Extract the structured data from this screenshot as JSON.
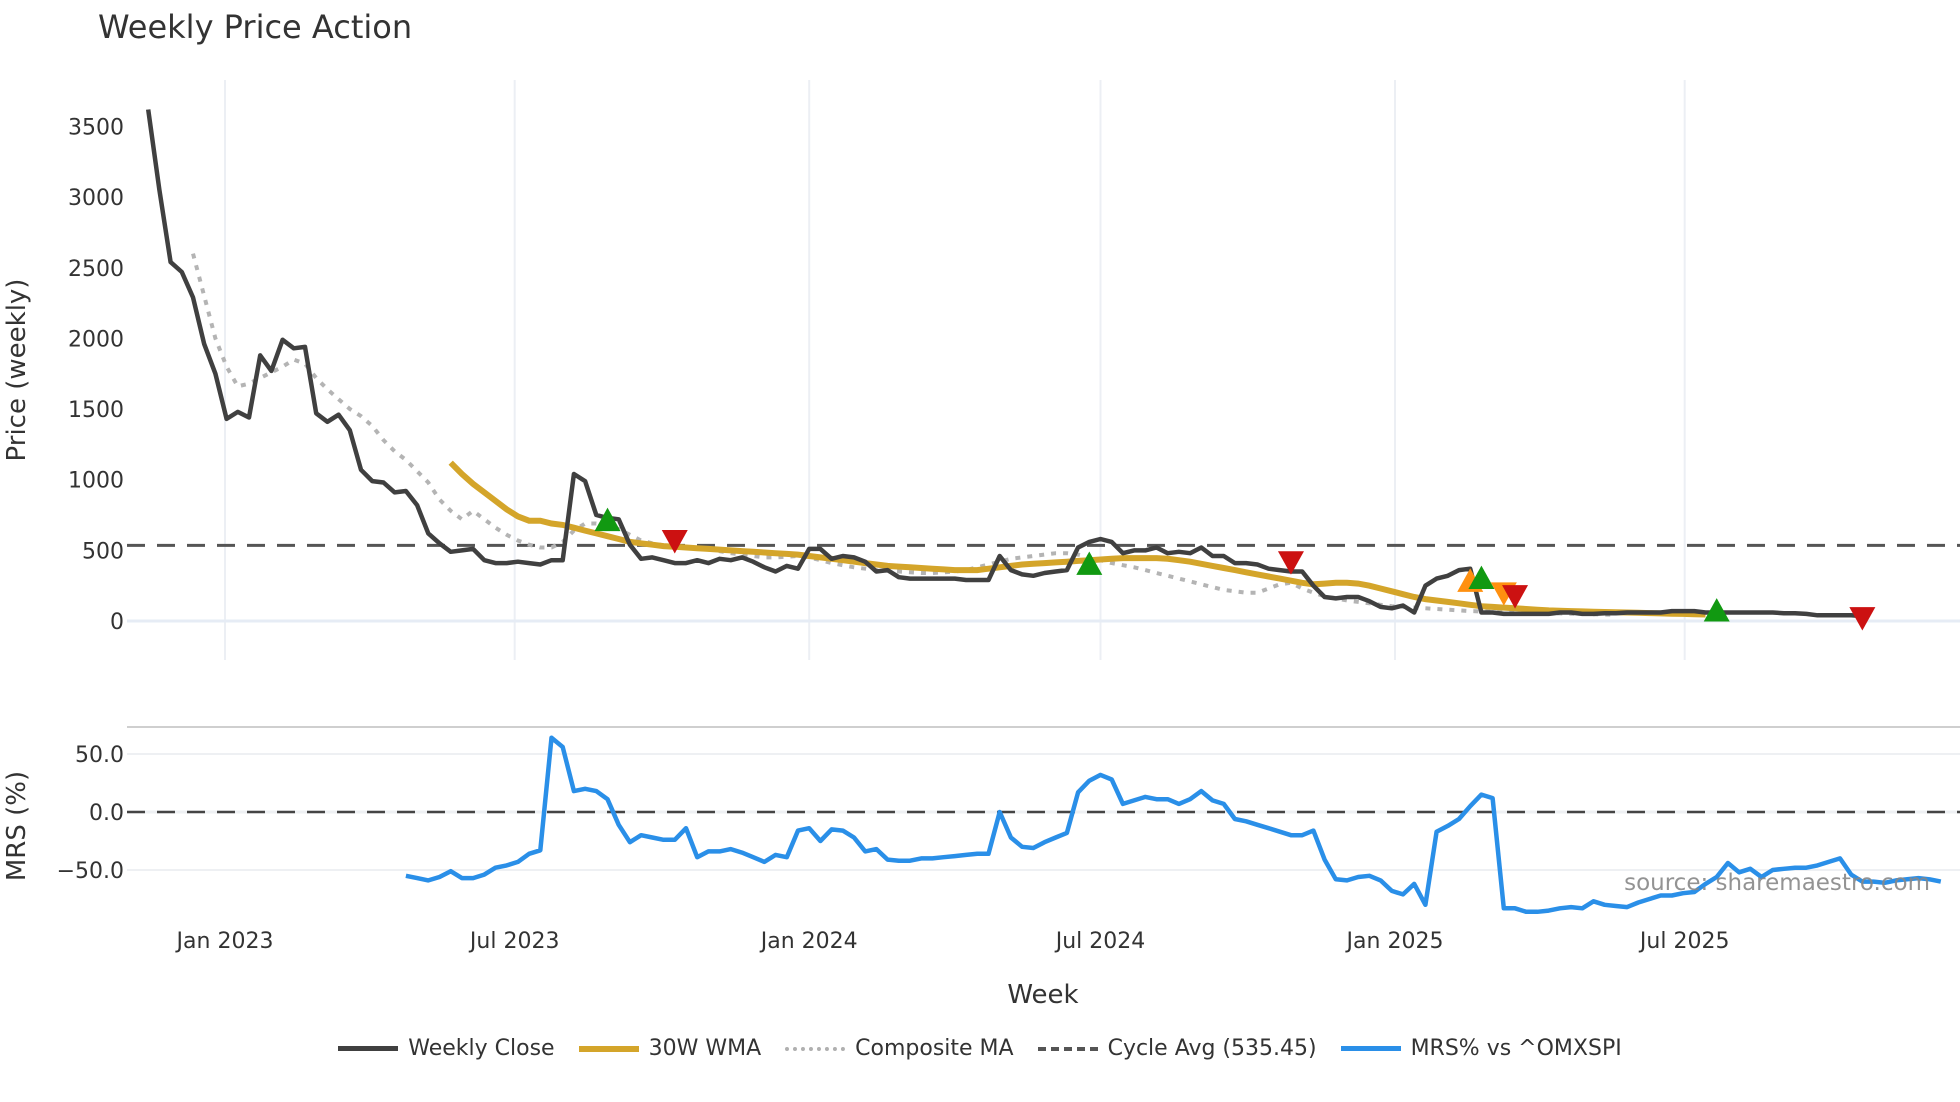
{
  "title": "Weekly Price Action",
  "source_note": "source: sharemaestro.com",
  "legend": [
    {
      "label": "Weekly Close",
      "color": "#404040",
      "style": "solid"
    },
    {
      "label": "30W WMA",
      "color": "#D4A52A",
      "style": "solid"
    },
    {
      "label": "Composite MA",
      "color": "#B0B0B0",
      "style": "dotted"
    },
    {
      "label": "Cycle Avg (535.45)",
      "color": "#555555",
      "style": "dashed"
    },
    {
      "label": "MRS% vs ^OMXSPI",
      "color": "#2A8FE8",
      "style": "solid"
    }
  ],
  "axes": {
    "price_ylabel": "Price (weekly)",
    "mrs_ylabel": "MRS (%)",
    "xlabel": "Week",
    "price_ticks": [
      "0",
      "500",
      "1000",
      "1500",
      "2000",
      "2500",
      "3000",
      "3500"
    ],
    "mrs_ticks": [
      "50.0",
      "0.0",
      "-50.0"
    ],
    "x_ticks": [
      "Jan 2023",
      "Jul 2023",
      "Jan 2024",
      "Jul 2024",
      "Jan 2025",
      "Jul 2025"
    ]
  },
  "chart_data": [
    {
      "type": "line",
      "title": "Weekly Price Action",
      "xlabel": "Week",
      "ylabel": "Price (weekly)",
      "ylim": [
        -250,
        3750
      ],
      "x_range": [
        "2022-11-14",
        "2025-11-03"
      ],
      "grid": true,
      "legend_position": "bottom",
      "reference_lines": [
        {
          "name": "Cycle Avg (535.45)",
          "y": 535.45,
          "style": "dashed"
        }
      ],
      "series": [
        {
          "name": "Weekly Close",
          "x_start": "2022-11-14",
          "freq": "weekly",
          "values": [
            3620,
            3050,
            2540,
            2470,
            2290,
            1960,
            1750,
            1430,
            1480,
            1440,
            1880,
            1770,
            1990,
            1930,
            1940,
            1470,
            1410,
            1460,
            1350,
            1070,
            990,
            980,
            910,
            920,
            820,
            620,
            550,
            490,
            500,
            510,
            430,
            410,
            410,
            420,
            410,
            400,
            430,
            430,
            1040,
            990,
            750,
            730,
            720,
            540,
            440,
            450,
            430,
            410,
            410,
            430,
            410,
            440,
            430,
            450,
            420,
            380,
            350,
            390,
            370,
            510,
            510,
            440,
            460,
            450,
            420,
            350,
            360,
            310,
            300,
            300,
            300,
            300,
            300,
            290,
            290,
            290,
            460,
            360,
            330,
            320,
            340,
            350,
            360,
            520,
            560,
            580,
            560,
            480,
            500,
            500,
            520,
            480,
            490,
            480,
            520,
            460,
            460,
            410,
            410,
            400,
            370,
            360,
            350,
            350,
            250,
            170,
            160,
            170,
            170,
            140,
            100,
            90,
            110,
            60,
            250,
            300,
            320,
            360,
            370,
            60,
            60,
            50,
            50,
            50,
            50,
            50,
            60,
            60,
            50,
            50,
            55,
            55,
            60,
            60,
            60,
            60,
            70,
            70,
            70,
            60,
            60,
            60,
            60,
            60,
            60,
            60,
            55,
            55,
            50,
            40,
            40,
            40,
            40,
            35
          ]
        },
        {
          "name": "30W WMA",
          "x_start": "2023-05-22",
          "freq": "weekly",
          "values": [
            1120,
            1040,
            970,
            910,
            850,
            790,
            740,
            710,
            710,
            690,
            680,
            660,
            640,
            620,
            600,
            580,
            560,
            550,
            540,
            530,
            525,
            520,
            515,
            510,
            505,
            500,
            495,
            490,
            485,
            480,
            475,
            470,
            460,
            450,
            440,
            430,
            420,
            410,
            400,
            390,
            385,
            380,
            375,
            370,
            365,
            360,
            360,
            360,
            370,
            380,
            390,
            400,
            405,
            410,
            415,
            420,
            425,
            430,
            435,
            440,
            445,
            445,
            445,
            445,
            440,
            430,
            420,
            405,
            390,
            375,
            360,
            345,
            330,
            315,
            300,
            285,
            270,
            260,
            265,
            270,
            270,
            265,
            250,
            230,
            210,
            190,
            170,
            155,
            145,
            135,
            125,
            115,
            105,
            100,
            95,
            90,
            85,
            80,
            75,
            72,
            70,
            68,
            66,
            64,
            62,
            60,
            58,
            56,
            54,
            52,
            50,
            48,
            46
          ]
        },
        {
          "name": "Composite MA",
          "x_start": "2022-12-12",
          "freq": "weekly",
          "values": [
            2600,
            2300,
            2000,
            1800,
            1660,
            1680,
            1720,
            1760,
            1800,
            1850,
            1820,
            1720,
            1640,
            1570,
            1500,
            1450,
            1380,
            1280,
            1200,
            1140,
            1060,
            980,
            860,
            780,
            720,
            780,
            720,
            660,
            610,
            570,
            540,
            520,
            520,
            560,
            640,
            690,
            690,
            680,
            650,
            610,
            570,
            550,
            535,
            530,
            520,
            515,
            505,
            495,
            480,
            470,
            460,
            450,
            450,
            455,
            460,
            450,
            430,
            410,
            395,
            380,
            370,
            360,
            355,
            350,
            345,
            340,
            340,
            345,
            350,
            360,
            380,
            400,
            420,
            440,
            450,
            460,
            470,
            480,
            480,
            470,
            450,
            430,
            410,
            395,
            380,
            360,
            340,
            320,
            300,
            280,
            260,
            240,
            220,
            210,
            200,
            200,
            230,
            260,
            270,
            230,
            200,
            175,
            160,
            145,
            135,
            125,
            115,
            105,
            100,
            95,
            90,
            85,
            80,
            75,
            70,
            68,
            66,
            64,
            62,
            60,
            58,
            56,
            54,
            52,
            50,
            48,
            46,
            44
          ]
        },
        {
          "name": "Cycle Avg (535.45)",
          "constant": 535.45
        }
      ],
      "signals": [
        {
          "type": "buy",
          "color": "#119911",
          "date": "2023-08-28",
          "price": 710
        },
        {
          "type": "sell",
          "color": "#CC1111",
          "date": "2023-10-09",
          "price": 570
        },
        {
          "type": "buy",
          "color": "#119911",
          "date": "2024-06-24",
          "price": 400
        },
        {
          "type": "sell",
          "color": "#CC1111",
          "date": "2024-10-28",
          "price": 420
        },
        {
          "type": "caution-up",
          "color": "#FF9010",
          "date": "2025-02-17",
          "price": 280
        },
        {
          "type": "buy",
          "color": "#119911",
          "date": "2025-02-24",
          "price": 300
        },
        {
          "type": "caution-down",
          "color": "#FF9010",
          "date": "2025-03-10",
          "price": 200
        },
        {
          "type": "sell",
          "color": "#CC1111",
          "date": "2025-03-17",
          "price": 180
        },
        {
          "type": "buy",
          "color": "#119911",
          "date": "2025-07-21",
          "price": 70
        },
        {
          "type": "sell",
          "color": "#CC1111",
          "date": "2025-10-20",
          "price": 25
        }
      ]
    },
    {
      "type": "line",
      "title": "",
      "xlabel": "Week",
      "ylabel": "MRS (%)",
      "ylim": [
        -95,
        80
      ],
      "reference_lines": [
        {
          "y": 0,
          "style": "dashed"
        }
      ],
      "series": [
        {
          "name": "MRS% vs ^OMXSPI",
          "x_start": "2023-04-24",
          "freq": "weekly",
          "values": [
            -55,
            -57,
            -59,
            -56,
            -51,
            -57,
            -57,
            -54,
            -48,
            -46,
            -43,
            -36,
            -33,
            64,
            56,
            18,
            20,
            18,
            11,
            -11,
            -26,
            -20,
            -22,
            -24,
            -24,
            -14,
            -39,
            -34,
            -34,
            -32,
            -35,
            -39,
            -43,
            -37,
            -39,
            -16,
            -14,
            -25,
            -15,
            -16,
            -22,
            -34,
            -32,
            -41,
            -42,
            -42,
            -40,
            -40,
            -39,
            -38,
            -37,
            -36,
            -36,
            0,
            -22,
            -30,
            -31,
            -26,
            -22,
            -18,
            17,
            27,
            32,
            28,
            7,
            10,
            13,
            11,
            11,
            7,
            11,
            18,
            10,
            7,
            -6,
            -8,
            -11,
            -14,
            -17,
            -20,
            -20,
            -16,
            -41,
            -58,
            -59,
            -56,
            -55,
            -59,
            -68,
            -71,
            -62,
            -80,
            -17,
            -12,
            -6,
            5,
            15,
            12,
            -83,
            -83,
            -86,
            -86,
            -85,
            -83,
            -82,
            -83,
            -77,
            -80,
            -81,
            -82,
            -78,
            -75,
            -72,
            -72,
            -70,
            -69,
            -62,
            -56,
            -44,
            -52,
            -49,
            -56,
            -50,
            -49,
            -48,
            -48,
            -46,
            -43,
            -40,
            -54,
            -60,
            -60,
            -61,
            -59,
            -58,
            -57,
            -58,
            -60
          ]
        }
      ]
    }
  ]
}
